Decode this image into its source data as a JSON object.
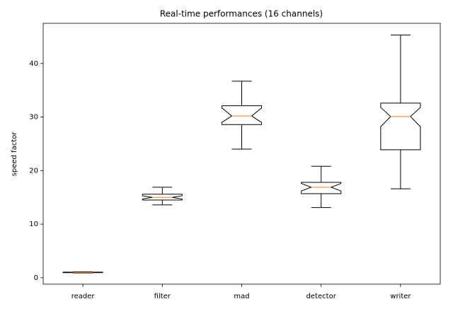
{
  "chart_data": {
    "type": "boxplot",
    "title": "Real-time performances (16 channels)",
    "y_label": "speed factor",
    "categories": [
      "reader",
      "filter",
      "mad",
      "detector",
      "writer"
    ],
    "boxes": [
      {
        "min": 0.9,
        "q1": 0.95,
        "median": 1.0,
        "q3": 1.05,
        "max": 1.1,
        "notch_low": 0.98,
        "notch_high": 1.02
      },
      {
        "min": 13.6,
        "q1": 14.5,
        "median": 15.0,
        "q3": 15.6,
        "max": 16.9,
        "notch_low": 14.7,
        "notch_high": 15.3
      },
      {
        "min": 24.0,
        "q1": 28.6,
        "median": 30.2,
        "q3": 32.1,
        "max": 36.7,
        "notch_low": 29.0,
        "notch_high": 31.7
      },
      {
        "min": 13.1,
        "q1": 15.7,
        "median": 16.9,
        "q3": 17.8,
        "max": 20.8,
        "notch_low": 16.2,
        "notch_high": 17.6
      },
      {
        "min": 16.6,
        "q1": 23.9,
        "median": 30.1,
        "q3": 32.6,
        "max": 45.3,
        "notch_low": 28.2,
        "notch_high": 31.8
      }
    ],
    "box_color": "#000000",
    "median_color": "#ff7f0e",
    "ylim": [
      -1.2,
      47.5
    ],
    "yticks": [
      0,
      10,
      20,
      30,
      40
    ],
    "grid": false
  }
}
